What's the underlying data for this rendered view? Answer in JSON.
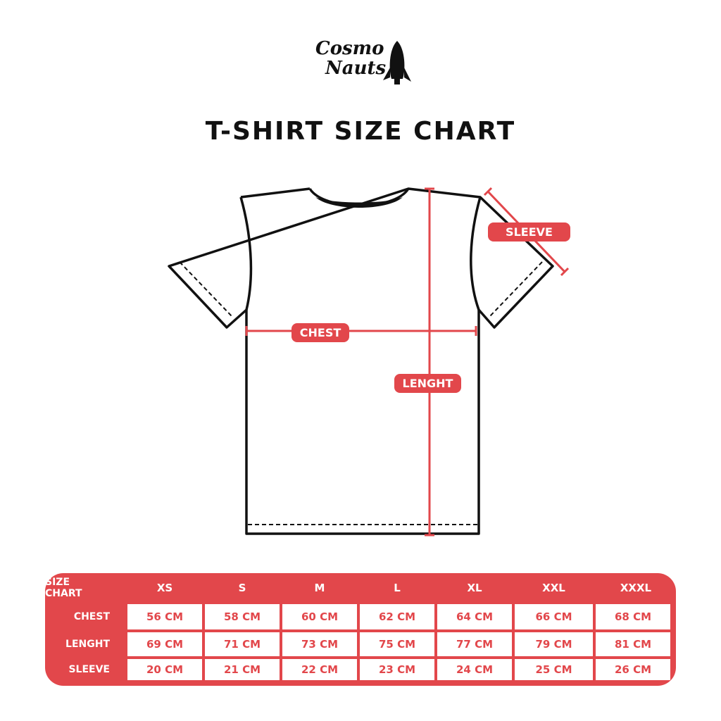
{
  "logo": {
    "line1": "Cosmo",
    "line2": "Nauts",
    "icon": "rocket-icon"
  },
  "title": "T-SHIRT SIZE CHART",
  "diagram": {
    "labels": {
      "sleeve": "SLEEVE",
      "chest": "CHEST",
      "length": "LENGHT"
    },
    "accent_color": "#e2474b"
  },
  "table": {
    "corner": "SIZE CHART",
    "sizes": [
      "XS",
      "S",
      "M",
      "L",
      "XL",
      "XXL",
      "XXXL"
    ],
    "rows": [
      {
        "label": "CHEST",
        "values": [
          "56 CM",
          "58 CM",
          "60 CM",
          "62 CM",
          "64 CM",
          "66 CM",
          "68 CM"
        ]
      },
      {
        "label": "LENGHT",
        "values": [
          "69 CM",
          "71 CM",
          "73 CM",
          "75 CM",
          "77 CM",
          "79 CM",
          "81 CM"
        ]
      },
      {
        "label": "SLEEVE",
        "values": [
          "20 CM",
          "21 CM",
          "22 CM",
          "23 CM",
          "24 CM",
          "25 CM",
          "26 CM"
        ]
      }
    ]
  }
}
